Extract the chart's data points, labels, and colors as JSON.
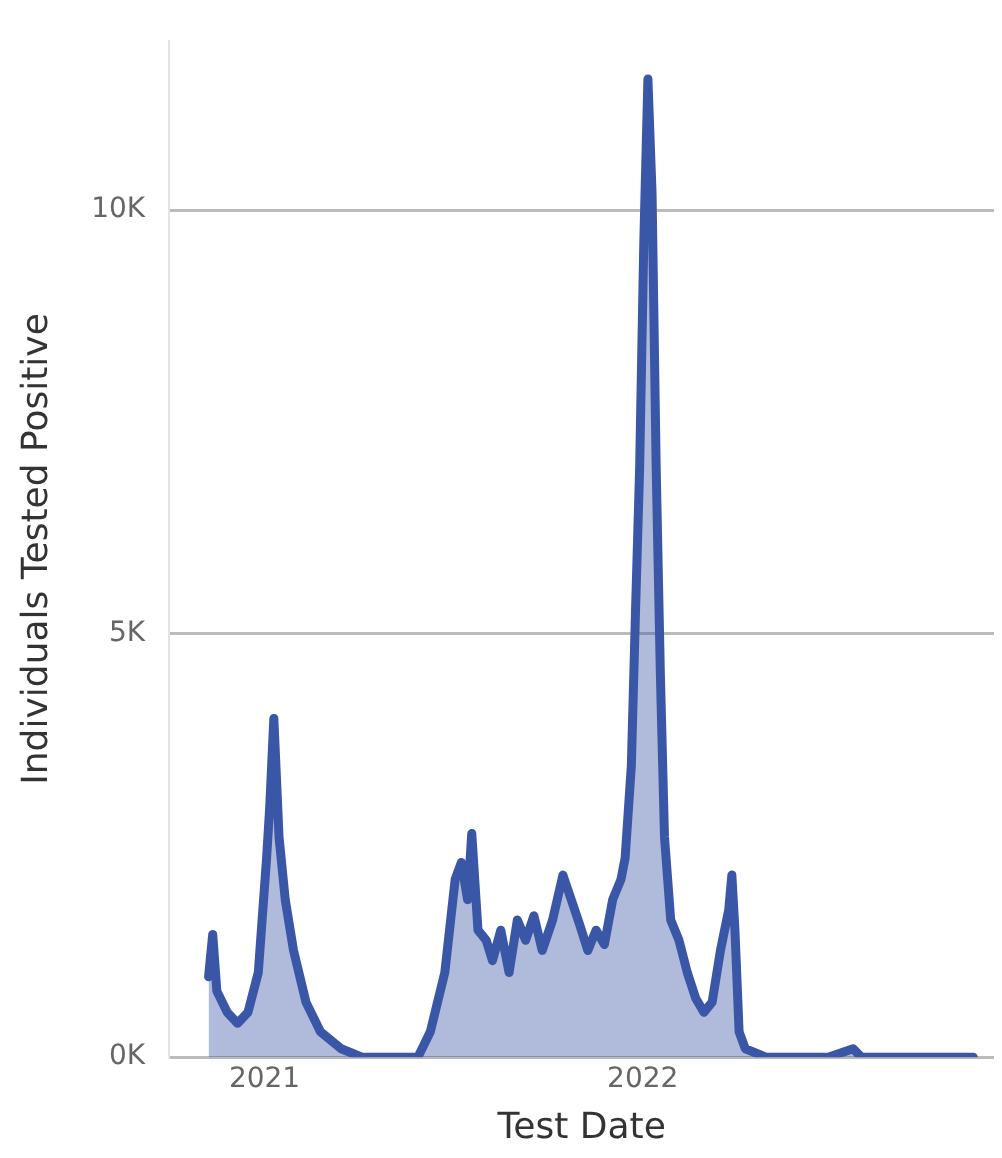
{
  "chart_data": {
    "type": "area",
    "xlabel": "Test Date",
    "ylabel": "Individuals Tested Positive",
    "x": [
      "2020-11-08",
      "2020-11-12",
      "2020-11-16",
      "2020-11-26",
      "2020-12-06",
      "2020-12-16",
      "2020-12-26",
      "2021-01-03",
      "2021-01-06",
      "2021-01-10",
      "2021-01-15",
      "2021-01-21",
      "2021-01-29",
      "2021-02-10",
      "2021-02-24",
      "2021-03-16",
      "2021-04-05",
      "2021-05-05",
      "2021-05-29",
      "2021-06-10",
      "2021-06-24",
      "2021-07-04",
      "2021-07-10",
      "2021-07-16",
      "2021-07-20",
      "2021-07-26",
      "2021-08-03",
      "2021-08-09",
      "2021-08-17",
      "2021-08-25",
      "2021-09-02",
      "2021-09-10",
      "2021-09-18",
      "2021-09-26",
      "2021-10-06",
      "2021-10-16",
      "2021-10-24",
      "2021-11-01",
      "2021-11-09",
      "2021-11-17",
      "2021-11-25",
      "2021-12-03",
      "2021-12-11",
      "2021-12-15",
      "2021-12-21",
      "2021-12-25",
      "2021-12-29",
      "2022-01-02",
      "2022-01-06",
      "2022-01-10",
      "2022-01-14",
      "2022-01-18",
      "2022-01-22",
      "2022-01-28",
      "2022-02-05",
      "2022-02-13",
      "2022-02-21",
      "2022-03-01",
      "2022-03-09",
      "2022-03-17",
      "2022-03-25",
      "2022-03-28",
      "2022-03-31",
      "2022-04-04",
      "2022-04-10",
      "2022-04-30",
      "2022-06-29",
      "2022-07-23",
      "2022-07-31",
      "2022-09-17",
      "2022-10-17",
      "2022-11-16"
    ],
    "series": [
      {
        "color": "#3a56a6",
        "values": [
          950,
          1450,
          780,
          530,
          400,
          530,
          1000,
          2350,
          2950,
          4000,
          2600,
          1860,
          1260,
          650,
          300,
          100,
          0,
          0,
          0,
          300,
          1000,
          2100,
          2300,
          1860,
          2640,
          1500,
          1380,
          1140,
          1500,
          1000,
          1620,
          1380,
          1670,
          1260,
          1620,
          2150,
          1860,
          1570,
          1260,
          1500,
          1330,
          1860,
          2100,
          2350,
          3440,
          5250,
          6950,
          9600,
          11550,
          10200,
          6950,
          4530,
          2600,
          1620,
          1380,
          1000,
          700,
          530,
          650,
          1260,
          1740,
          2150,
          1500,
          300,
          100,
          0,
          0,
          100,
          0,
          0,
          0,
          0
        ]
      }
    ],
    "xlim": [
      "2020-10-01",
      "2022-12-06"
    ],
    "xticks": [
      "2021",
      "2022"
    ],
    "ylim": [
      0,
      12000
    ],
    "yticks": [
      {
        "value": 0,
        "label": "0K"
      },
      {
        "value": 5000,
        "label": "5K"
      },
      {
        "value": 10000,
        "label": "10K"
      }
    ],
    "grid": "y",
    "legend": false,
    "marker": "none",
    "line_style": "solid"
  }
}
